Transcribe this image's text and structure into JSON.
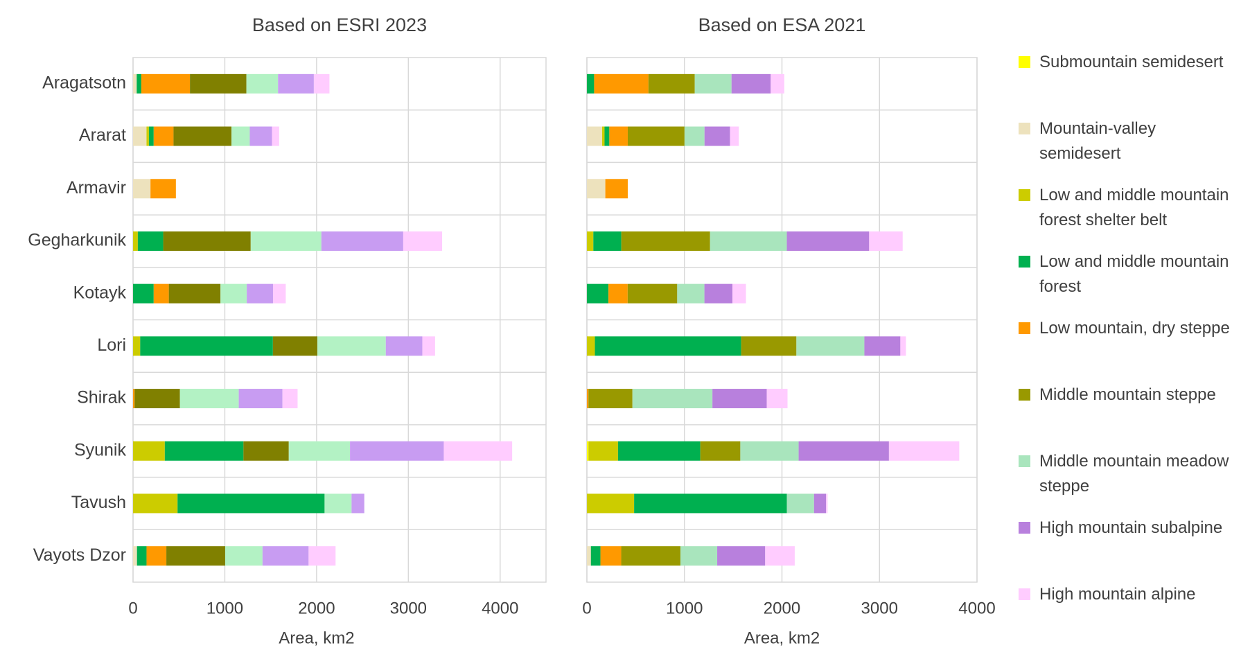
{
  "chart_data": [
    {
      "type": "stacked-bar-horizontal",
      "title": "Based on ESRI 2023",
      "x_label": "Area, km2",
      "categories": [
        "Aragatsotn",
        "Ararat",
        "Armavir",
        "Gegharkunik",
        "Kotayk",
        "Lori",
        "Shirak",
        "Syunik",
        "Tavush",
        "Vayots Dzor"
      ],
      "xlim": [
        0,
        4500
      ],
      "xticks": [
        0,
        1000,
        2000,
        3000,
        4000
      ],
      "grid": true,
      "series": [
        {
          "color": "#ffff00",
          "values": [
            0,
            0,
            0,
            0,
            0,
            0,
            0,
            0,
            0,
            0
          ]
        },
        {
          "color": "#ede2bd",
          "values": [
            40,
            147,
            190,
            0,
            0,
            0,
            0,
            0,
            0,
            43
          ]
        },
        {
          "color": "#cccc00",
          "values": [
            0,
            26,
            0,
            52,
            0,
            78,
            0,
            346,
            485,
            0
          ]
        },
        {
          "color": "#00b050",
          "values": [
            50,
            52,
            0,
            277,
            225,
            1446,
            0,
            857,
            1602,
            104
          ]
        },
        {
          "color": "#ff9900",
          "values": [
            530,
            216,
            277,
            0,
            165,
            0,
            17,
            0,
            0,
            216
          ]
        },
        {
          "color": "#808000",
          "values": [
            615,
            632,
            0,
            953,
            563,
            485,
            494,
            494,
            0,
            641
          ]
        },
        {
          "color": "#b3f2c4",
          "values": [
            345,
            199,
            0,
            770,
            286,
            745,
            641,
            667,
            294,
            407
          ]
        },
        {
          "color": "#c89cf2",
          "values": [
            390,
            242,
            0,
            892,
            286,
            398,
            476,
            1022,
            139,
            502
          ]
        },
        {
          "color": "#ffccff",
          "values": [
            170,
            78,
            0,
            424,
            139,
            139,
            165,
            745,
            0,
            294
          ]
        }
      ]
    },
    {
      "type": "stacked-bar-horizontal",
      "title": "Based on ESA 2021",
      "x_label": "Area, km2",
      "categories": [
        "Aragatsotn",
        "Ararat",
        "Armavir",
        "Gegharkunik",
        "Kotayk",
        "Lori",
        "Shirak",
        "Syunik",
        "Tavush",
        "Vayots Dzor"
      ],
      "xlim": [
        0,
        4000
      ],
      "xticks": [
        0,
        1000,
        2000,
        3000,
        4000
      ],
      "grid": true,
      "legend": "right",
      "series": [
        {
          "name": "Submountain semidesert",
          "color": "#ffff00",
          "values": [
            0,
            0,
            0,
            0,
            0,
            0,
            0,
            16,
            0,
            0
          ]
        },
        {
          "name": "Mountain-valley semidesert",
          "color": "#ede2bd",
          "values": [
            0,
            156,
            189,
            0,
            0,
            0,
            0,
            0,
            0,
            41
          ]
        },
        {
          "name": "Low and middle mountain forest shelter belt",
          "color": "#cccc00",
          "values": [
            0,
            25,
            0,
            66,
            0,
            82,
            0,
            303,
            484,
            0
          ]
        },
        {
          "name": "Low and middle mountain forest",
          "color": "#00b050",
          "values": [
            74,
            49,
            0,
            287,
            221,
            1500,
            0,
            844,
            1566,
            98
          ]
        },
        {
          "name": "Low mountain, dry steppe",
          "color": "#ff9900",
          "values": [
            557,
            189,
            230,
            0,
            197,
            0,
            16,
            0,
            0,
            213
          ]
        },
        {
          "name": "Middle mountain steppe",
          "color": "#999900",
          "values": [
            475,
            582,
            0,
            910,
            508,
            566,
            451,
            410,
            0,
            607
          ]
        },
        {
          "name": "Middle mountain meadow steppe",
          "color": "#a9e5bd",
          "values": [
            377,
            205,
            0,
            787,
            279,
            697,
            820,
            598,
            279,
            377
          ]
        },
        {
          "name": "High mountain subalpine",
          "color": "#b880dd",
          "values": [
            402,
            262,
            0,
            844,
            287,
            369,
            557,
            926,
            123,
            492
          ]
        },
        {
          "name": "High mountain alpine",
          "color": "#ffccff",
          "values": [
            139,
            90,
            0,
            344,
            139,
            57,
            213,
            721,
            16,
            303
          ]
        }
      ]
    }
  ]
}
